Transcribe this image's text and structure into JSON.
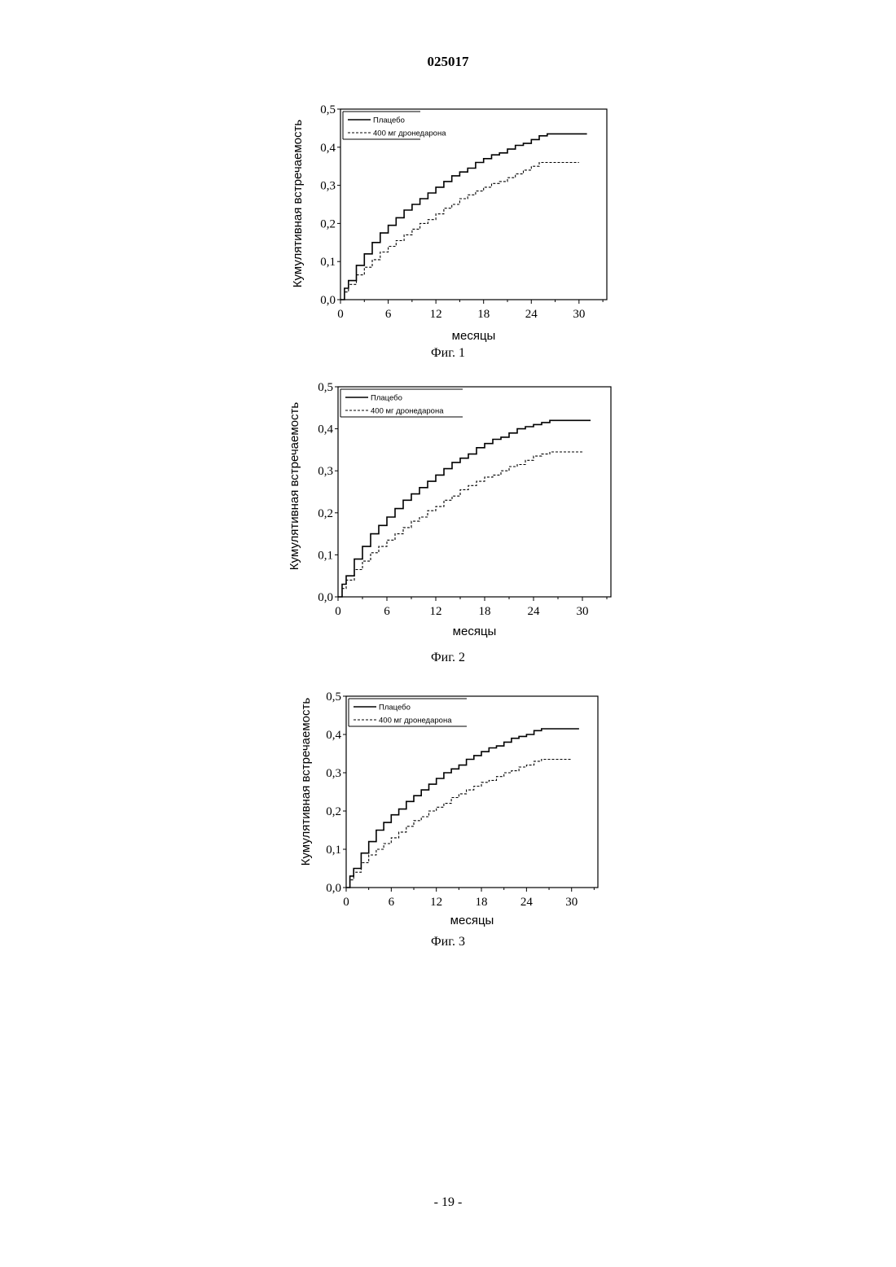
{
  "document": {
    "number": "025017",
    "page_number": "- 19 -"
  },
  "chart_data": [
    {
      "type": "line",
      "caption": "Фиг. 1",
      "xlabel": "месяцы",
      "ylabel": "Кумулятивная встречаемость",
      "xlim": [
        0,
        33.5
      ],
      "ylim": [
        0,
        0.5
      ],
      "xticks": [
        0,
        6,
        12,
        18,
        24,
        30
      ],
      "xtick_labels": [
        "0",
        "6",
        "12",
        "18",
        "24",
        "30"
      ],
      "yticks": [
        0,
        0.1,
        0.2,
        0.3,
        0.4,
        0.5
      ],
      "ytick_labels": [
        "0,0",
        "0,1",
        "0,2",
        "0,3",
        "0,4",
        "0,5"
      ],
      "legend_position": "top-left",
      "series": [
        {
          "name": "Плацебо",
          "style": "solid",
          "x": [
            0,
            0.5,
            1,
            2,
            3,
            4,
            5,
            6,
            7,
            8,
            9,
            10,
            11,
            12,
            13,
            14,
            15,
            16,
            17,
            18,
            19,
            20,
            21,
            22,
            23,
            24,
            25,
            26,
            27,
            28,
            29,
            30,
            31
          ],
          "y": [
            0,
            0.03,
            0.05,
            0.09,
            0.12,
            0.15,
            0.175,
            0.195,
            0.215,
            0.235,
            0.25,
            0.265,
            0.28,
            0.295,
            0.31,
            0.325,
            0.335,
            0.345,
            0.36,
            0.37,
            0.38,
            0.385,
            0.395,
            0.405,
            0.41,
            0.42,
            0.43,
            0.435,
            0.435,
            0.435,
            0.435,
            0.435,
            0.435
          ]
        },
        {
          "name": "400 мг дронедарона",
          "style": "dashed",
          "x": [
            0,
            0.5,
            1,
            2,
            3,
            4,
            5,
            6,
            7,
            8,
            9,
            10,
            11,
            12,
            13,
            14,
            15,
            16,
            17,
            18,
            19,
            20,
            21,
            22,
            23,
            24,
            25,
            26,
            27,
            28,
            29,
            30
          ],
          "y": [
            0,
            0.02,
            0.04,
            0.065,
            0.085,
            0.105,
            0.125,
            0.14,
            0.155,
            0.17,
            0.185,
            0.2,
            0.21,
            0.225,
            0.24,
            0.25,
            0.265,
            0.275,
            0.285,
            0.295,
            0.305,
            0.31,
            0.32,
            0.33,
            0.34,
            0.35,
            0.36,
            0.36,
            0.36,
            0.36,
            0.36,
            0.36
          ]
        }
      ]
    },
    {
      "type": "line",
      "caption": "Фиг. 2",
      "xlabel": "месяцы",
      "ylabel": "Кумулятивная встречаемость",
      "xlim": [
        0,
        33.5
      ],
      "ylim": [
        0,
        0.5
      ],
      "xticks": [
        0,
        6,
        12,
        18,
        24,
        30
      ],
      "xtick_labels": [
        "0",
        "6",
        "12",
        "18",
        "24",
        "30"
      ],
      "yticks": [
        0,
        0.1,
        0.2,
        0.3,
        0.4,
        0.5
      ],
      "ytick_labels": [
        "0,0",
        "0,1",
        "0,2",
        "0,3",
        "0,4",
        "0,5"
      ],
      "legend_position": "top-left",
      "series": [
        {
          "name": "Плацебо",
          "style": "solid",
          "x": [
            0,
            0.5,
            1,
            2,
            3,
            4,
            5,
            6,
            7,
            8,
            9,
            10,
            11,
            12,
            13,
            14,
            15,
            16,
            17,
            18,
            19,
            20,
            21,
            22,
            23,
            24,
            25,
            26,
            27,
            28,
            29,
            30,
            31
          ],
          "y": [
            0,
            0.03,
            0.05,
            0.09,
            0.12,
            0.15,
            0.17,
            0.19,
            0.21,
            0.23,
            0.245,
            0.26,
            0.275,
            0.29,
            0.305,
            0.32,
            0.33,
            0.34,
            0.355,
            0.365,
            0.375,
            0.38,
            0.39,
            0.4,
            0.405,
            0.41,
            0.415,
            0.42,
            0.42,
            0.42,
            0.42,
            0.42,
            0.42
          ]
        },
        {
          "name": "400 мг дронедарона",
          "style": "dashed",
          "x": [
            0,
            0.5,
            1,
            2,
            3,
            4,
            5,
            6,
            7,
            8,
            9,
            10,
            11,
            12,
            13,
            14,
            15,
            16,
            17,
            18,
            19,
            20,
            21,
            22,
            23,
            24,
            25,
            26,
            27,
            28,
            29,
            30
          ],
          "y": [
            0,
            0.02,
            0.04,
            0.065,
            0.085,
            0.105,
            0.12,
            0.135,
            0.15,
            0.165,
            0.18,
            0.19,
            0.205,
            0.215,
            0.23,
            0.24,
            0.255,
            0.265,
            0.275,
            0.285,
            0.29,
            0.3,
            0.31,
            0.315,
            0.325,
            0.335,
            0.34,
            0.345,
            0.345,
            0.345,
            0.345,
            0.345
          ]
        }
      ]
    },
    {
      "type": "line",
      "caption": "Фиг. 3",
      "xlabel": "месяцы",
      "ylabel": "Кумулятивная встречаемость",
      "xlim": [
        0,
        33.5
      ],
      "ylim": [
        0,
        0.5
      ],
      "xticks": [
        0,
        6,
        12,
        18,
        24,
        30
      ],
      "xtick_labels": [
        "0",
        "6",
        "12",
        "18",
        "24",
        "30"
      ],
      "yticks": [
        0,
        0.1,
        0.2,
        0.3,
        0.4,
        0.5
      ],
      "ytick_labels": [
        "0,0",
        "0,1",
        "0,2",
        "0,3",
        "0,4",
        "0,5"
      ],
      "legend_position": "top-left",
      "series": [
        {
          "name": "Плацебо",
          "style": "solid",
          "x": [
            0,
            0.5,
            1,
            2,
            3,
            4,
            5,
            6,
            7,
            8,
            9,
            10,
            11,
            12,
            13,
            14,
            15,
            16,
            17,
            18,
            19,
            20,
            21,
            22,
            23,
            24,
            25,
            26,
            27,
            28,
            29,
            30,
            31
          ],
          "y": [
            0,
            0.03,
            0.05,
            0.09,
            0.12,
            0.15,
            0.17,
            0.19,
            0.205,
            0.225,
            0.24,
            0.255,
            0.27,
            0.285,
            0.3,
            0.31,
            0.32,
            0.335,
            0.345,
            0.355,
            0.365,
            0.37,
            0.38,
            0.39,
            0.395,
            0.4,
            0.41,
            0.415,
            0.415,
            0.415,
            0.415,
            0.415,
            0.415
          ]
        },
        {
          "name": "400 мг дронедарона",
          "style": "dashed",
          "x": [
            0,
            0.5,
            1,
            2,
            3,
            4,
            5,
            6,
            7,
            8,
            9,
            10,
            11,
            12,
            13,
            14,
            15,
            16,
            17,
            18,
            19,
            20,
            21,
            22,
            23,
            24,
            25,
            26,
            27,
            28,
            29,
            30
          ],
          "y": [
            0,
            0.02,
            0.04,
            0.065,
            0.085,
            0.1,
            0.115,
            0.13,
            0.145,
            0.16,
            0.175,
            0.185,
            0.2,
            0.21,
            0.22,
            0.235,
            0.245,
            0.255,
            0.265,
            0.275,
            0.28,
            0.29,
            0.3,
            0.305,
            0.315,
            0.32,
            0.33,
            0.335,
            0.335,
            0.335,
            0.335,
            0.335
          ]
        }
      ]
    }
  ]
}
